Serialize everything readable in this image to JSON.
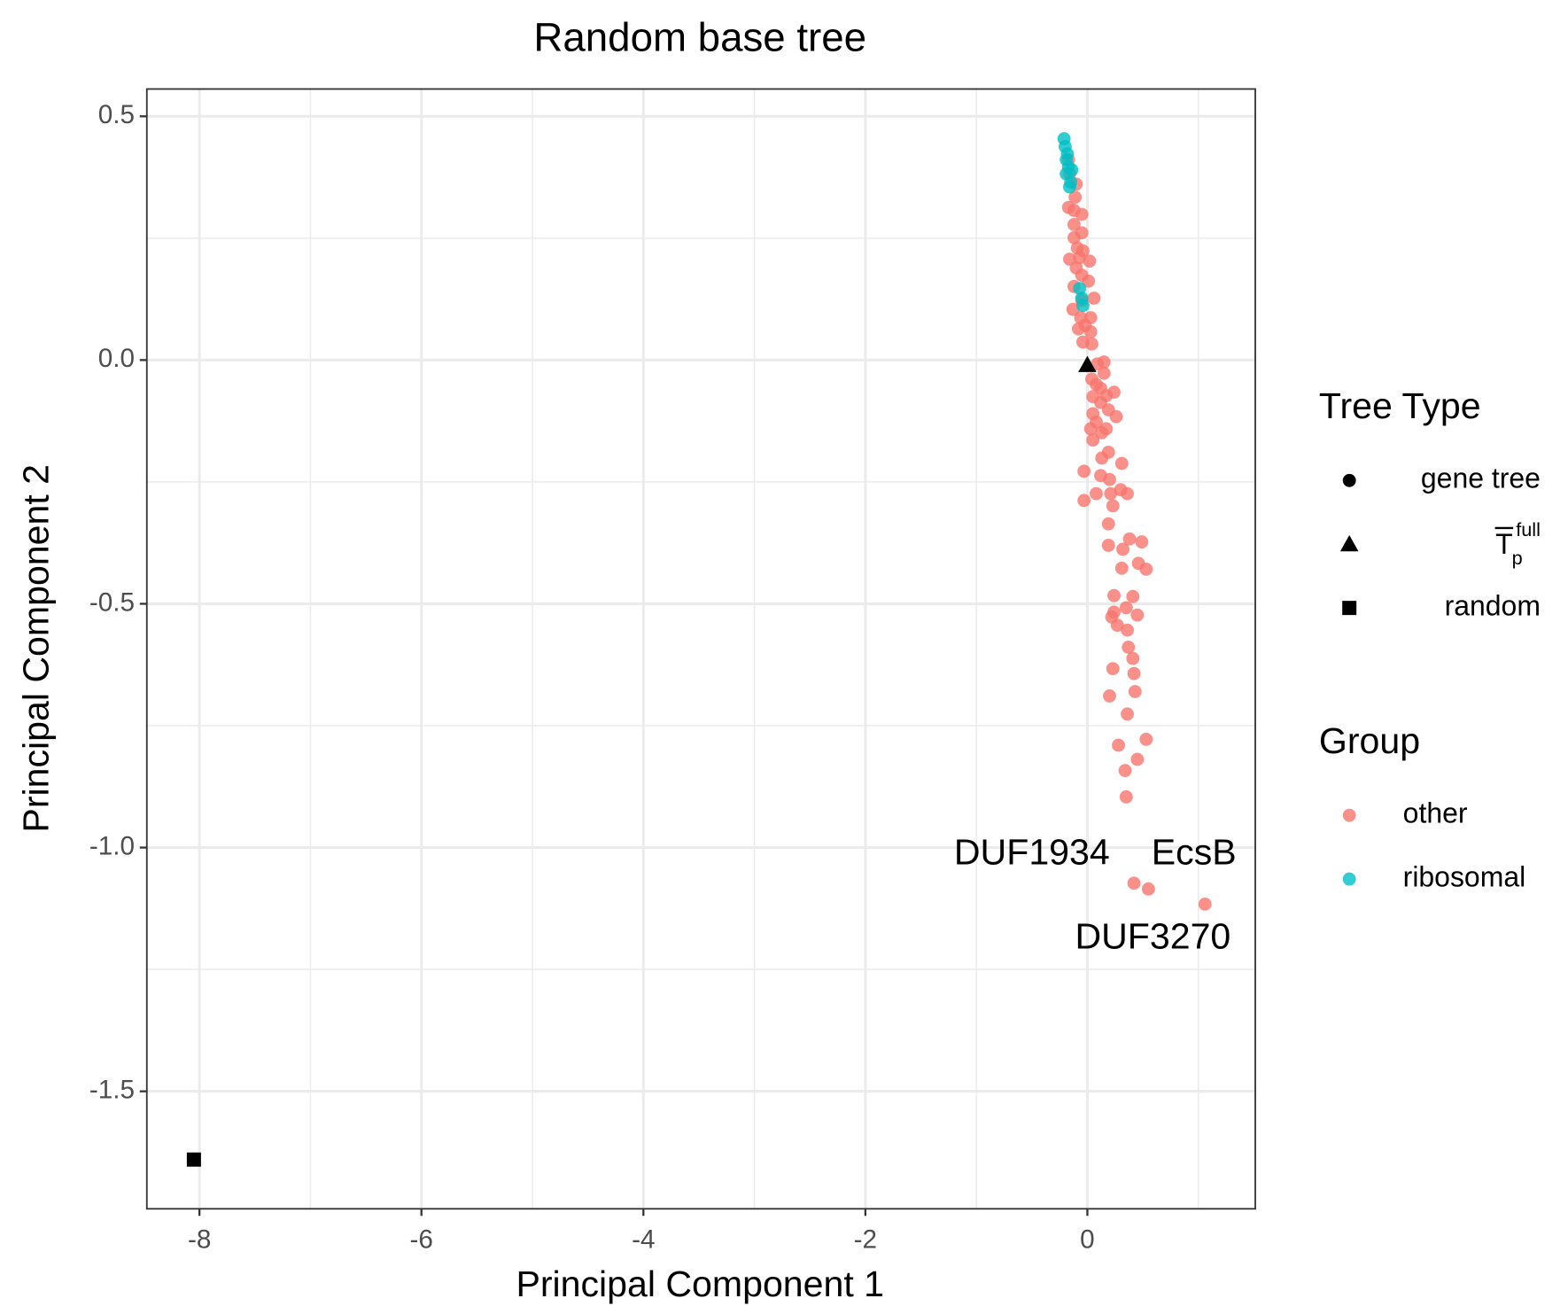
{
  "chart_data": {
    "type": "scatter",
    "title": "Random base tree",
    "x_label": "Principal Component 1",
    "y_label": "Principal Component 2",
    "xlim": [
      -8.474,
      1.513
    ],
    "ylim": [
      -1.741,
      0.556
    ],
    "xticks": [
      -8,
      -6,
      -4,
      -2,
      0
    ],
    "yticks": [
      0.5,
      {
        "value": 0,
        "label": "0.0"
      },
      -0.5,
      {
        "value": -1,
        "label": "-1.0"
      },
      -1.5
    ],
    "x_minor_grid": [
      -7,
      -5,
      -3,
      -1,
      1
    ],
    "y_minor_grid": [
      0.25,
      -0.25,
      -0.75,
      -1.25
    ],
    "grid": true,
    "series": [
      {
        "name": "other",
        "color": "#F8766D",
        "shape": "circle",
        "x": [
          0.42,
          0.55,
          1.06,
          0.35,
          0.34,
          0.45,
          0.28,
          0.53,
          0.36,
          0.43,
          0.2,
          0.42,
          0.23,
          0.41,
          0.37,
          0.27,
          0.36,
          0.24,
          0.45,
          0.22,
          0.35,
          0.41,
          0.24,
          0.53,
          0.46,
          0.31,
          0.49,
          0.38,
          0.32,
          0.19,
          0.19,
          0.23,
          -0.03,
          0.36,
          0.3,
          0.21,
          0.08,
          0.2,
          -0.03,
          0.12,
          0.31,
          0.13,
          0.19,
          0.05,
          0.13,
          0.17,
          0.03,
          0.08,
          0.26,
          0.19,
          0.05,
          0.12,
          0.24,
          0.17,
          0.05,
          0.08,
          0.15,
          0.09,
          0.15,
          0.04,
          0.12,
          0.04,
          -0.04,
          0.03,
          -0.08,
          -0.02,
          0.03,
          -0.06,
          -0.13,
          0.06,
          -0.05,
          -0.12,
          0.01,
          -0.05,
          -0.1,
          0.02,
          -0.07,
          -0.16,
          -0.04,
          -0.09,
          -0.12,
          -0.05,
          -0.12,
          -0.05,
          -0.12,
          -0.17,
          -0.11,
          -0.1,
          -0.16,
          -0.17
        ],
        "y": [
          -1.073,
          -1.085,
          -1.116,
          -0.896,
          -0.842,
          -0.819,
          -0.79,
          -0.778,
          -0.726,
          -0.68,
          -0.689,
          -0.643,
          -0.633,
          -0.612,
          -0.589,
          -0.544,
          -0.554,
          -0.517,
          -0.523,
          -0.527,
          -0.508,
          -0.485,
          -0.483,
          -0.429,
          -0.417,
          -0.427,
          -0.373,
          -0.367,
          -0.388,
          -0.38,
          -0.336,
          -0.299,
          -0.288,
          -0.274,
          -0.266,
          -0.274,
          -0.274,
          -0.245,
          -0.228,
          -0.237,
          -0.212,
          -0.201,
          -0.189,
          -0.164,
          -0.149,
          -0.141,
          -0.141,
          -0.127,
          -0.116,
          -0.102,
          -0.11,
          -0.087,
          -0.066,
          -0.073,
          -0.075,
          -0.05,
          -0.027,
          -0.008,
          -0.004,
          -0.039,
          -0.058,
          0.033,
          0.037,
          0.058,
          0.064,
          0.071,
          0.087,
          0.087,
          0.104,
          0.127,
          0.122,
          0.151,
          0.162,
          0.174,
          0.189,
          0.203,
          0.21,
          0.207,
          0.224,
          0.23,
          0.251,
          0.261,
          0.278,
          0.299,
          0.307,
          0.313,
          0.334,
          0.361,
          0.382,
          0.411
        ]
      },
      {
        "name": "ribosomal",
        "color": "#00BFC4",
        "shape": "circle",
        "x": [
          -0.21,
          -0.2,
          -0.18,
          -0.19,
          -0.17,
          -0.14,
          -0.19,
          -0.15,
          -0.16,
          -0.04,
          -0.05,
          -0.07
        ],
        "y": [
          0.454,
          0.438,
          0.423,
          0.411,
          0.396,
          0.39,
          0.382,
          0.365,
          0.355,
          0.112,
          0.127,
          0.147
        ]
      }
    ],
    "special_points": [
      {
        "shape": "triangle",
        "color": "#000000",
        "x": 0,
        "y": -0.01
      },
      {
        "shape": "square",
        "color": "#000000",
        "x": -8.05,
        "y": -1.64
      }
    ],
    "annotations": [
      {
        "text": "DUF1934",
        "x": -0.5,
        "y": -1.015
      },
      {
        "text": "EcsB",
        "x": 0.96,
        "y": -1.015
      },
      {
        "text": "DUF3270",
        "x": 0.59,
        "y": -1.187
      }
    ],
    "legend_tree_type": {
      "title": "Tree Type",
      "entries": [
        {
          "label": "gene tree",
          "shape": "circle"
        },
        {
          "label": {
            "base": "T",
            "sub": "p",
            "sup": "full"
          },
          "shape": "triangle"
        },
        {
          "label": "random",
          "shape": "square"
        }
      ]
    },
    "legend_group_title": "Group"
  }
}
